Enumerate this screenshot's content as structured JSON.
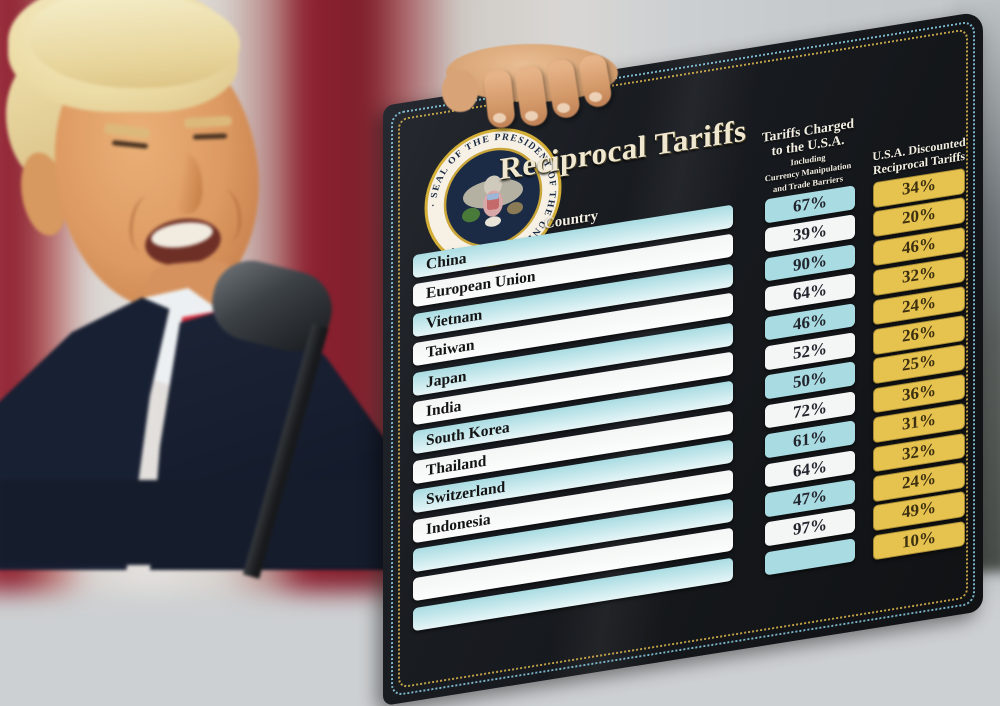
{
  "board": {
    "title": "Reciprocal Tariffs",
    "seal_text": "· SEAL OF THE PRESIDENT OF THE UNITED STATES ·",
    "country_header": "Country",
    "charged_header": {
      "line1": "Tariffs Charged",
      "line2": "to the U.S.A.",
      "note1": "Including",
      "note2": "Currency Manipulation",
      "note3": "and Trade Barriers"
    },
    "discounted_header": {
      "line1": "U.S.A. Discounted",
      "line2": "Reciprocal Tariffs"
    },
    "rows": [
      {
        "country": "China",
        "charged": "67%",
        "discounted": "34%"
      },
      {
        "country": "European Union",
        "charged": "39%",
        "discounted": "20%"
      },
      {
        "country": "Vietnam",
        "charged": "90%",
        "discounted": "46%"
      },
      {
        "country": "Taiwan",
        "charged": "64%",
        "discounted": "32%"
      },
      {
        "country": "Japan",
        "charged": "46%",
        "discounted": "24%"
      },
      {
        "country": "India",
        "charged": "52%",
        "discounted": "26%"
      },
      {
        "country": "South Korea",
        "charged": "50%",
        "discounted": "25%"
      },
      {
        "country": "Thailand",
        "charged": "72%",
        "discounted": "36%"
      },
      {
        "country": "Switzerland",
        "charged": "61%",
        "discounted": "31%"
      },
      {
        "country": "Indonesia",
        "charged": "64%",
        "discounted": "32%"
      },
      {
        "country": "",
        "charged": "47%",
        "discounted": "24%"
      },
      {
        "country": "",
        "charged": "97%",
        "discounted": "49%"
      },
      {
        "country": "",
        "charged": "",
        "discounted": "10%"
      }
    ],
    "colors": {
      "row_cyan": "#a9dce2",
      "row_white": "#f3f6f4",
      "tariff_yellow": "#e6c24e",
      "board_black": "#17191d",
      "dot_border_blue": "#86c6dd",
      "dot_border_gold": "#d2ae4c"
    }
  },
  "chart_data": {
    "type": "table",
    "title": "Reciprocal Tariffs",
    "columns": [
      "Country",
      "Tariffs Charged to the U.S.A. Including Currency Manipulation and Trade Barriers",
      "U.S.A. Discounted Reciprocal Tariffs"
    ],
    "rows": [
      [
        "China",
        67,
        34
      ],
      [
        "European Union",
        39,
        20
      ],
      [
        "Vietnam",
        90,
        46
      ],
      [
        "Taiwan",
        64,
        32
      ],
      [
        "Japan",
        46,
        24
      ],
      [
        "India",
        52,
        26
      ],
      [
        "South Korea",
        50,
        25
      ],
      [
        "Thailand",
        72,
        36
      ],
      [
        "Switzerland",
        61,
        31
      ],
      [
        "Indonesia",
        64,
        32
      ],
      [
        null,
        47,
        24
      ],
      [
        null,
        97,
        49
      ],
      [
        null,
        null,
        10
      ]
    ],
    "units": "percent"
  }
}
